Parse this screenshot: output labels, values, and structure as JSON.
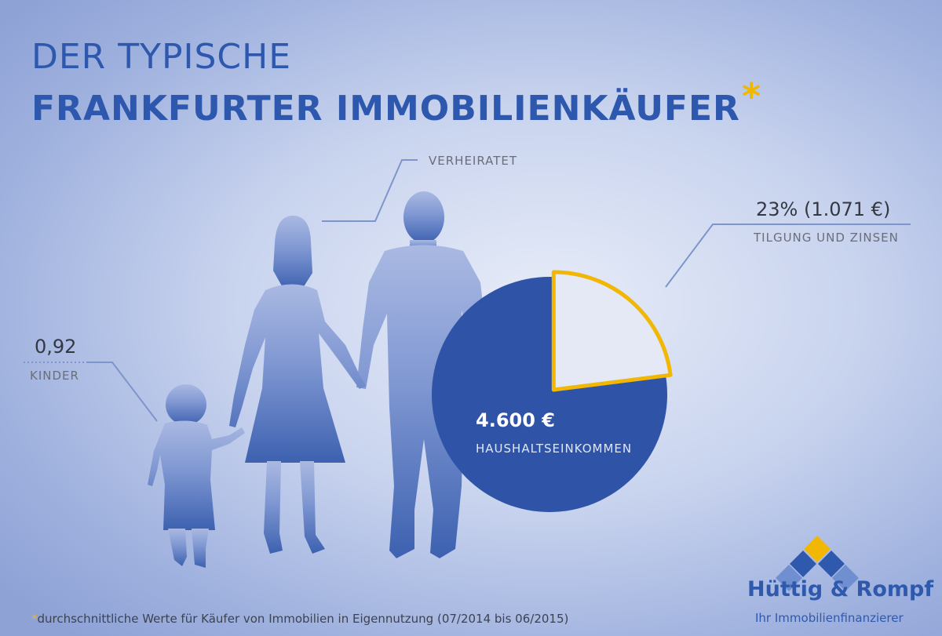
{
  "title": {
    "line1": "DER TYPISCHE",
    "line2": "FRANKFURTER IMMOBILIENKÄUFER",
    "asterisk": "*"
  },
  "annotations": {
    "married": "VERHEIRATET",
    "children_value": "0,92",
    "children_label": "KINDER",
    "repayment_value": "23% (1.071 €)",
    "repayment_label": "TILGUNG UND ZINSEN"
  },
  "pie": {
    "income_value": "4.600 €",
    "income_label": "HAUSHALTSEINKOMMEN",
    "share": 0.23,
    "colors": {
      "main": "#2f53a6",
      "slice": "#e4e9f5",
      "slice_border": "#f2b705"
    }
  },
  "footnote": {
    "asterisk": "*",
    "text": "durchschnittliche Werte für Käufer von Immobilien in Eigennutzung (07/2014 bis 06/2015)"
  },
  "logo": {
    "name": "Hüttig & Rompf",
    "tagline": "Ihr Immobilienfinanzierer",
    "colors": {
      "blue": "#2f59ad",
      "gold": "#f2b705"
    }
  },
  "colors": {
    "title": "#2e58ad",
    "accent": "#f0b800",
    "silhouette": "#3f63b0"
  }
}
